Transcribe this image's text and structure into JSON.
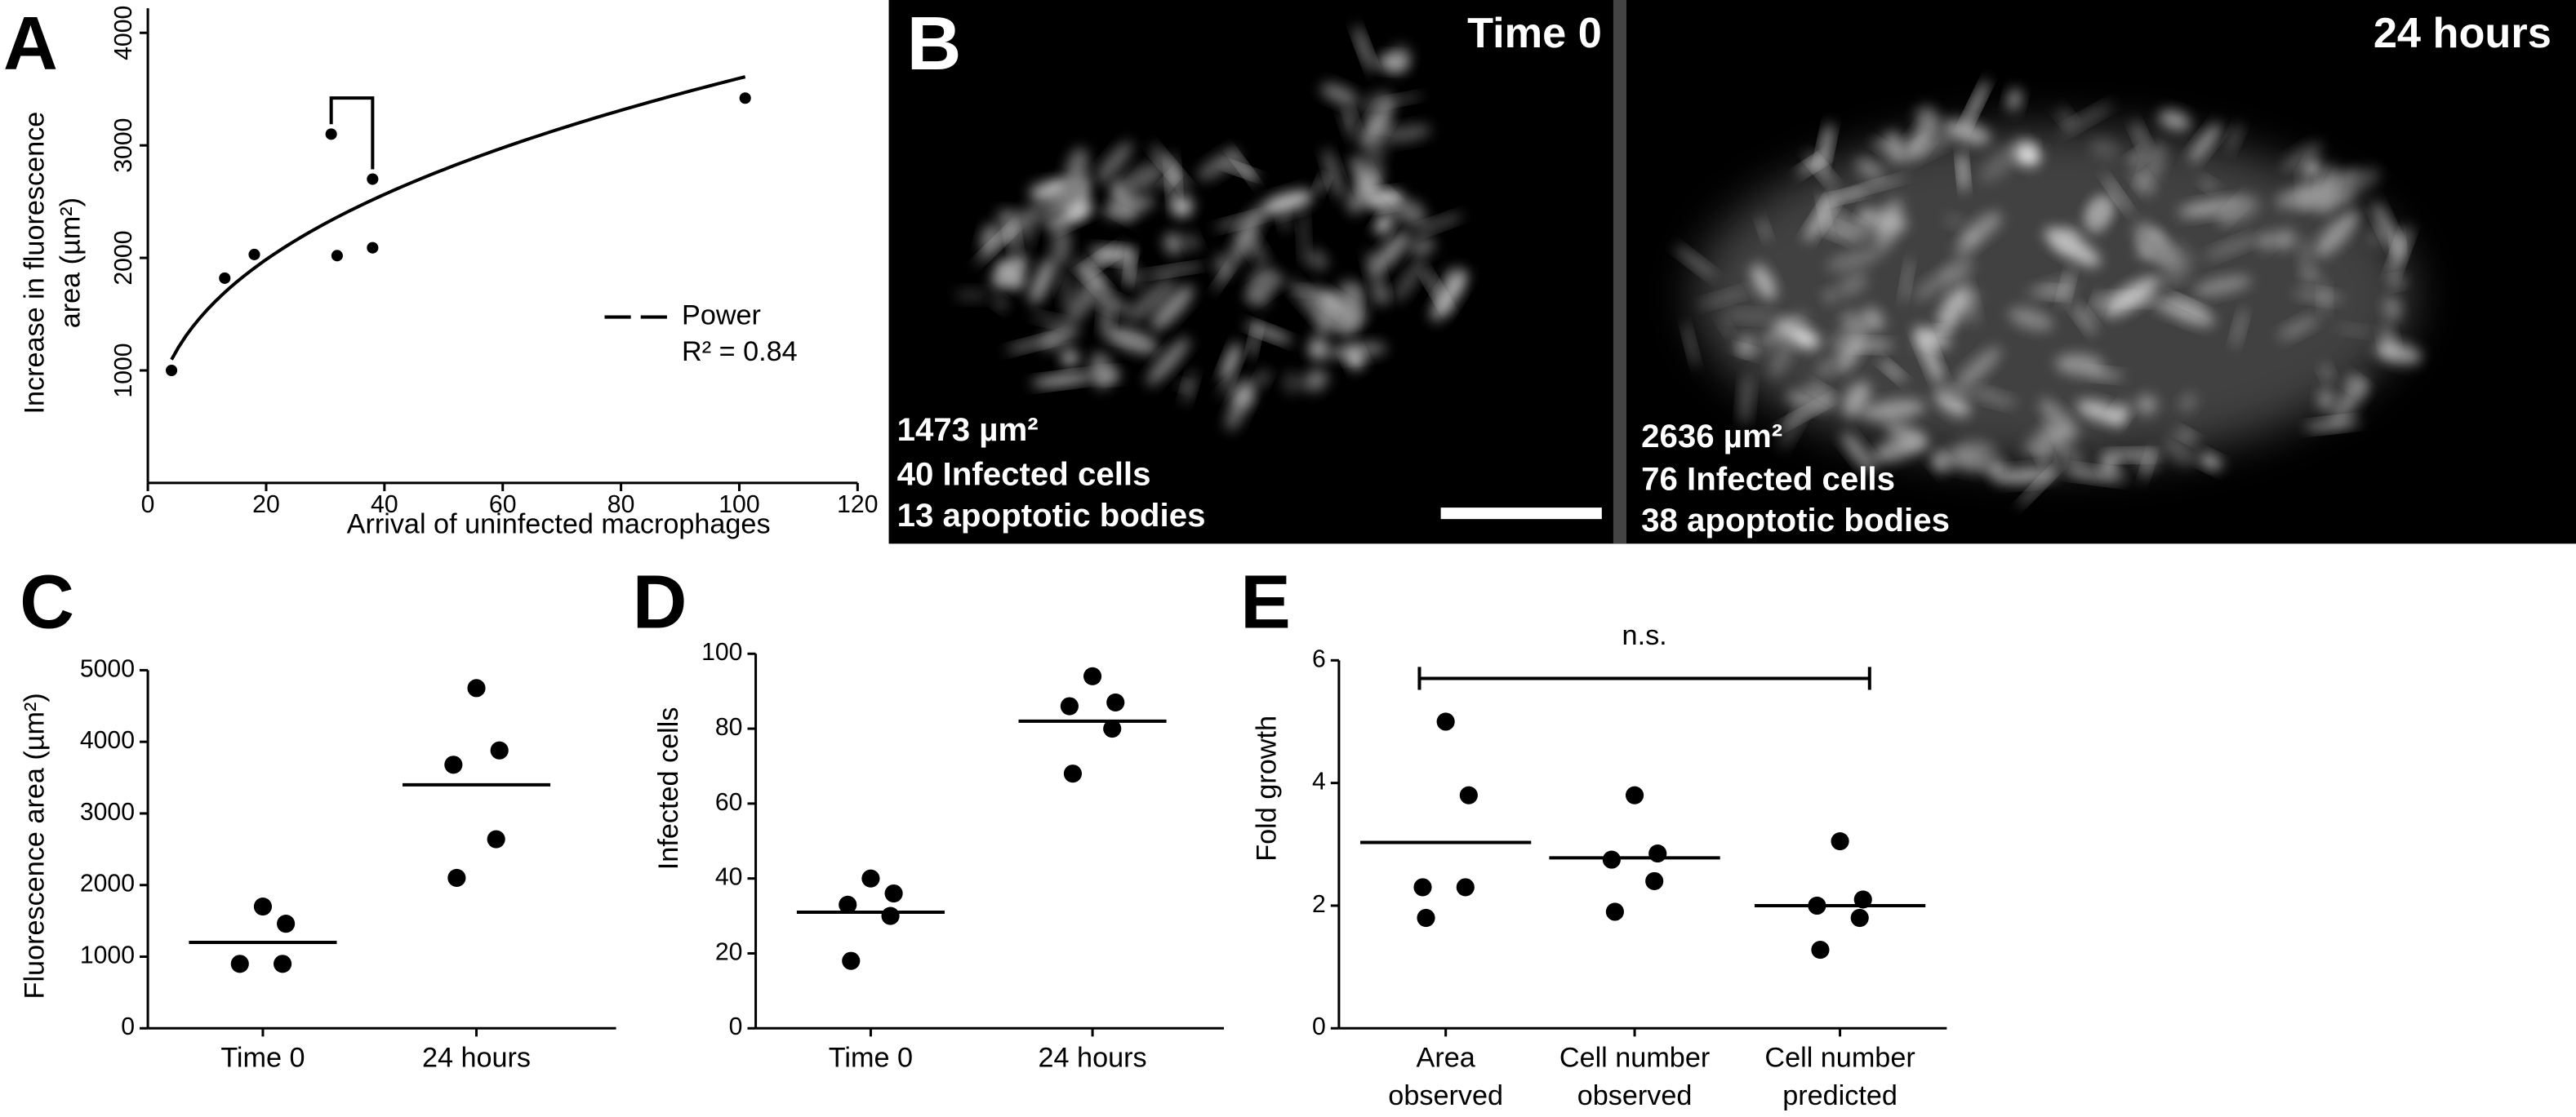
{
  "chart_data": [
    {
      "type": "scatter",
      "panel": "A",
      "color": "#000000",
      "x": [
        4,
        13,
        18,
        31,
        32,
        38,
        38,
        101
      ],
      "values": [
        1000,
        1820,
        2030,
        3100,
        2020,
        2700,
        2090,
        3420
      ],
      "xlabel": "Arrival of uninfected macrophages",
      "ylabel": [
        "Increase in fluorescence",
        "area (µm²)"
      ],
      "xlim": [
        0,
        120
      ],
      "xticks": [
        0,
        20,
        40,
        60,
        80,
        100,
        120
      ],
      "ylim": [
        0,
        4000
      ],
      "yticks": [
        1000,
        2000,
        3000,
        4000
      ],
      "fit": {
        "type": "power",
        "name": "Power",
        "label": "R² = 0.84"
      }
    },
    {
      "type": "strip",
      "panel": "C",
      "color": "#000000",
      "categories": [
        "Time 0",
        "24 hours"
      ],
      "values": [
        [
          1700,
          1460,
          900,
          900
        ],
        [
          4750,
          3880,
          3680,
          2640,
          2100
        ]
      ],
      "means": [
        1200,
        3400
      ],
      "ylabel": "Fluorescence area (µm²)",
      "ylim": [
        0,
        5000
      ],
      "yticks": [
        0,
        1000,
        2000,
        3000,
        4000,
        5000
      ]
    },
    {
      "type": "strip",
      "panel": "D",
      "color": "#000000",
      "categories": [
        "Time 0",
        "24 hours"
      ],
      "values": [
        [
          40,
          36,
          33,
          30,
          18
        ],
        [
          94,
          87,
          86,
          80,
          68
        ]
      ],
      "means": [
        31,
        82
      ],
      "ylabel": "Infected cells",
      "ylim": [
        0,
        100
      ],
      "yticks": [
        0,
        20,
        40,
        60,
        80,
        100
      ]
    },
    {
      "type": "strip",
      "panel": "E",
      "color": "#000000",
      "categories": [
        [
          "Area",
          "observed"
        ],
        [
          "Cell number",
          "observed"
        ],
        [
          "Cell number",
          "predicted"
        ]
      ],
      "values": [
        [
          5.0,
          3.8,
          2.3,
          2.3,
          1.8
        ],
        [
          3.8,
          2.85,
          2.75,
          2.4,
          1.9
        ],
        [
          3.05,
          2.1,
          2.0,
          1.8,
          1.28
        ]
      ],
      "means": [
        3.03,
        2.78,
        2.0
      ],
      "ylabel": "Fold growth",
      "annotation": "n.s.",
      "ylim": [
        0,
        6
      ],
      "yticks": [
        0,
        2,
        4,
        6
      ]
    }
  ],
  "image_panel": {
    "label": "B",
    "frames": [
      {
        "title": "Time 0",
        "lines": [
          "1473 µm²",
          "40 Infected cells",
          "13 apoptotic bodies"
        ]
      },
      {
        "title": "24 hours",
        "lines": [
          "2636 µm²",
          "76 Infected cells",
          "38 apoptotic bodies"
        ]
      }
    ]
  }
}
